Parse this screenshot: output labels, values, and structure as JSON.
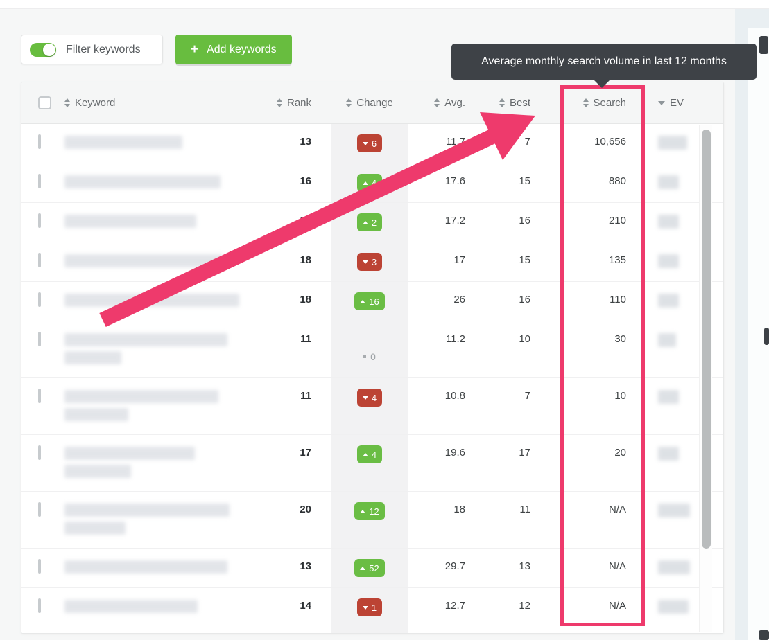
{
  "toolbar": {
    "filter_toggle_label": "Filter keywords",
    "filter_toggle_on": true,
    "add_button_label": "Add keywords",
    "plus_icon": "+"
  },
  "tooltip": {
    "text": "Average monthly search volume in last 12 months",
    "bg_color": "#3e4247"
  },
  "table": {
    "columns": [
      {
        "key": "keyword",
        "label": "Keyword",
        "sort": "both",
        "align": "left"
      },
      {
        "key": "rank",
        "label": "Rank",
        "sort": "both",
        "align": "right"
      },
      {
        "key": "change",
        "label": "Change",
        "sort": "both",
        "align": "center"
      },
      {
        "key": "avg",
        "label": "Avg.",
        "sort": "both",
        "align": "right"
      },
      {
        "key": "best",
        "label": "Best",
        "sort": "both",
        "align": "right"
      },
      {
        "key": "search",
        "label": "Search",
        "sort": "both",
        "align": "right"
      },
      {
        "key": "ev",
        "label": "EV",
        "sort": "desc",
        "align": "left"
      }
    ],
    "rows": [
      {
        "keyword_redacted_lines": [
          170
        ],
        "rank": "13",
        "change": {
          "dir": "down",
          "value": "6"
        },
        "avg": "11.7",
        "best": "7",
        "search": "10,656",
        "ev_redacted_width": 42
      },
      {
        "keyword_redacted_lines": [
          225
        ],
        "rank": "16",
        "change": {
          "dir": "up",
          "value": "4"
        },
        "avg": "17.6",
        "best": "15",
        "search": "880",
        "ev_redacted_width": 30
      },
      {
        "keyword_redacted_lines": [
          190
        ],
        "rank": "17",
        "change": {
          "dir": "up",
          "value": "2"
        },
        "avg": "17.2",
        "best": "16",
        "search": "210",
        "ev_redacted_width": 30
      },
      {
        "keyword_redacted_lines": [
          228
        ],
        "rank": "18",
        "change": {
          "dir": "down",
          "value": "3"
        },
        "avg": "17",
        "best": "15",
        "search": "135",
        "ev_redacted_width": 30
      },
      {
        "keyword_redacted_lines": [
          252
        ],
        "rank": "18",
        "change": {
          "dir": "up",
          "value": "16"
        },
        "avg": "26",
        "best": "16",
        "search": "110",
        "ev_redacted_width": 30
      },
      {
        "keyword_redacted_lines": [
          235,
          82
        ],
        "rank": "11",
        "change": {
          "dir": "none",
          "value": "0"
        },
        "avg": "11.2",
        "best": "10",
        "search": "30",
        "ev_redacted_width": 26
      },
      {
        "keyword_redacted_lines": [
          222,
          92
        ],
        "rank": "11",
        "change": {
          "dir": "down",
          "value": "4"
        },
        "avg": "10.8",
        "best": "7",
        "search": "10",
        "ev_redacted_width": 30
      },
      {
        "keyword_redacted_lines": [
          188,
          96
        ],
        "rank": "17",
        "change": {
          "dir": "up",
          "value": "4"
        },
        "avg": "19.6",
        "best": "17",
        "search": "20",
        "ev_redacted_width": 30
      },
      {
        "keyword_redacted_lines": [
          238,
          88
        ],
        "rank": "20",
        "change": {
          "dir": "up",
          "value": "12"
        },
        "avg": "18",
        "best": "11",
        "search": "N/A",
        "ev_redacted_width": 46
      },
      {
        "keyword_redacted_lines": [
          235
        ],
        "rank": "13",
        "change": {
          "dir": "up",
          "value": "52"
        },
        "avg": "29.7",
        "best": "13",
        "search": "N/A",
        "ev_redacted_width": 46
      },
      {
        "keyword_redacted_lines": [
          192
        ],
        "rank": "14",
        "change": {
          "dir": "down",
          "value": "1"
        },
        "avg": "12.7",
        "best": "12",
        "search": "N/A",
        "ev_redacted_width": 44
      }
    ]
  },
  "colors": {
    "accent_green": "#68bd3f",
    "badge_green": "#6abd44",
    "badge_red": "#bc4334",
    "annotation_pink": "#ee3a6c",
    "tooltip_dark": "#3e4247"
  }
}
